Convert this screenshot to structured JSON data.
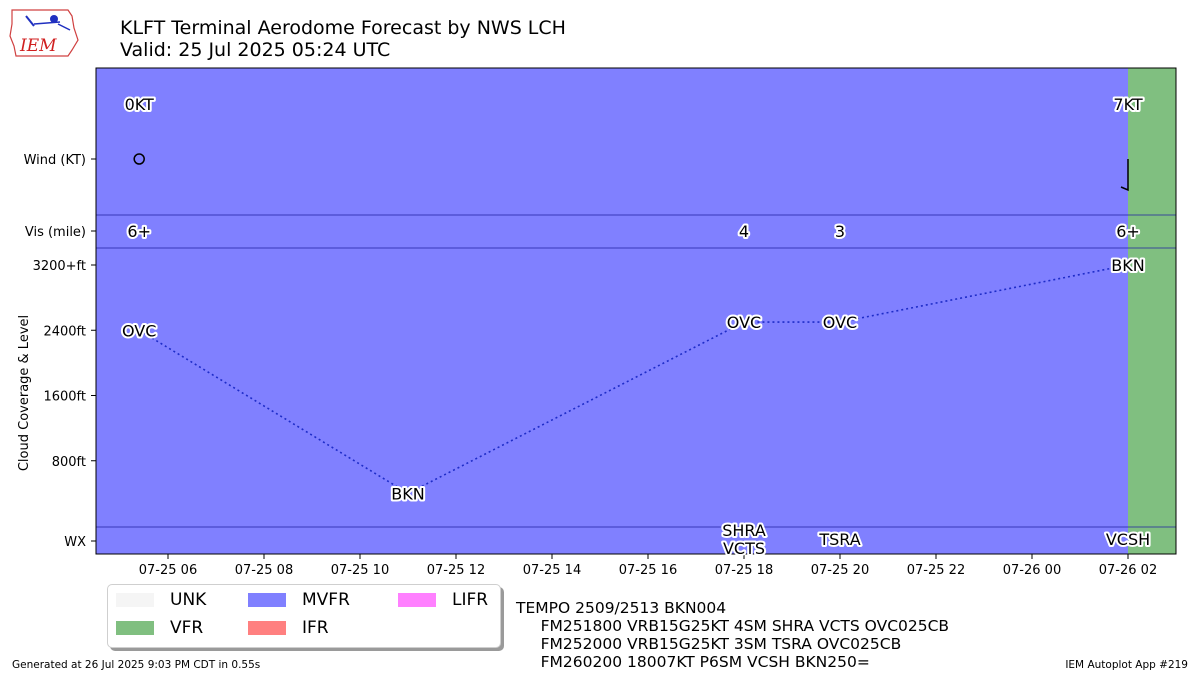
{
  "header": {
    "title_line1": "KLFT Terminal Aerodome Forecast by NWS LCH",
    "title_line2": "Valid: 25 Jul 2025 05:24 UTC",
    "logo_text": "IEM"
  },
  "chart_data": {
    "type": "timeline",
    "x_axis": {
      "start": "07-25 04:30",
      "end": "07-26 03:00",
      "ticks": [
        "07-25 06",
        "07-25 08",
        "07-25 10",
        "07-25 12",
        "07-25 14",
        "07-25 16",
        "07-25 18",
        "07-25 20",
        "07-25 22",
        "07-26 00",
        "07-26 02"
      ]
    },
    "y_axis": {
      "label": "Cloud Coverage & Level",
      "row_labels": {
        "wind": "Wind (KT)",
        "vis": "Vis (mile)",
        "wx": "WX"
      },
      "cloud_ticks": [
        {
          "label": "3200+ft",
          "value": 3200
        },
        {
          "label": "2400ft",
          "value": 2400
        },
        {
          "label": "1600ft",
          "value": 1600
        },
        {
          "label": "800ft",
          "value": 800
        }
      ]
    },
    "category_bands": [
      {
        "category": "MVFR",
        "start": "07-25 04:30",
        "end": "07-26 02:00"
      },
      {
        "category": "VFR",
        "start": "07-26 02:00",
        "end": "07-26 03:00"
      }
    ],
    "forecasts": [
      {
        "time": "07-25 05:24",
        "wind_label": "0KT",
        "wind_speed": 0,
        "wind_dir": 0,
        "vis_label": "6+",
        "cloud_label": "OVC",
        "cloud_ft": 2400,
        "wx": ""
      },
      {
        "time": "07-25 11:00",
        "wind_label": "",
        "vis_label": "",
        "cloud_label": "BKN",
        "cloud_ft": 400,
        "wx": ""
      },
      {
        "time": "07-25 18:00",
        "wind_label": "",
        "vis_label": "4",
        "cloud_label": "OVC",
        "cloud_ft": 2500,
        "wx": "SHRA\nVCTS"
      },
      {
        "time": "07-25 20:00",
        "wind_label": "",
        "vis_label": "3",
        "cloud_label": "OVC",
        "cloud_ft": 2500,
        "wx": "TSRA"
      },
      {
        "time": "07-26 02:00",
        "wind_label": "7KT",
        "wind_speed": 7,
        "wind_dir": 180,
        "vis_label": "6+",
        "cloud_label": "BKN",
        "cloud_ft": 3200,
        "wx": "VCSH"
      }
    ]
  },
  "legend": {
    "placement": "bottom-left",
    "items": [
      {
        "label": "UNK",
        "color": "#f5f5f5"
      },
      {
        "label": "VFR",
        "color": "#80bf80"
      },
      {
        "label": "MVFR",
        "color": "#8080ff"
      },
      {
        "label": "IFR",
        "color": "#ff8080"
      },
      {
        "label": "LIFR",
        "color": "#ff80ff"
      }
    ]
  },
  "raw_taf": "TEMPO 2509/2513 BKN004\n     FM251800 VRB15G25KT 4SM SHRA VCTS OVC025CB\n     FM252000 VRB15G25KT 3SM TSRA OVC025CB\n     FM260200 18007KT P6SM VCSH BKN250=",
  "footer": {
    "left": "Generated at 26 Jul 2025 9:03 PM CDT in 0.55s",
    "right": "IEM Autoplot App #219"
  }
}
